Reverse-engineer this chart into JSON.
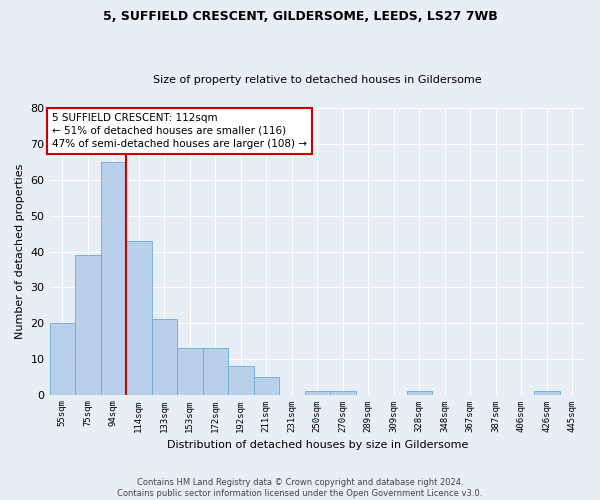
{
  "title": "5, SUFFIELD CRESCENT, GILDERSOME, LEEDS, LS27 7WB",
  "subtitle": "Size of property relative to detached houses in Gildersome",
  "xlabel": "Distribution of detached houses by size in Gildersome",
  "ylabel": "Number of detached properties",
  "bin_labels": [
    "55sqm",
    "75sqm",
    "94sqm",
    "114sqm",
    "133sqm",
    "153sqm",
    "172sqm",
    "192sqm",
    "211sqm",
    "231sqm",
    "250sqm",
    "270sqm",
    "289sqm",
    "309sqm",
    "328sqm",
    "348sqm",
    "367sqm",
    "387sqm",
    "406sqm",
    "426sqm",
    "445sqm"
  ],
  "bar_values": [
    20,
    39,
    65,
    43,
    21,
    13,
    13,
    8,
    5,
    0,
    1,
    1,
    0,
    0,
    1,
    0,
    0,
    0,
    0,
    1,
    0
  ],
  "bar_color": "#b8d0ea",
  "bar_edge_color": "#6aaad4",
  "background_color": "#e8eef5",
  "grid_color": "#ffffff",
  "vline_color": "#cc0000",
  "vline_x_index": 3,
  "ylim": [
    0,
    80
  ],
  "yticks": [
    0,
    10,
    20,
    30,
    40,
    50,
    60,
    70,
    80
  ],
  "annotation_title": "5 SUFFIELD CRESCENT: 112sqm",
  "annotation_line1": "← 51% of detached houses are smaller (116)",
  "annotation_line2": "47% of semi-detached houses are larger (108) →",
  "annotation_box_color": "#ffffff",
  "annotation_box_edge": "#cc0000",
  "footer_line1": "Contains HM Land Registry data © Crown copyright and database right 2024.",
  "footer_line2": "Contains public sector information licensed under the Open Government Licence v3.0.",
  "title_fontsize": 9,
  "subtitle_fontsize": 8,
  "ylabel_fontsize": 8,
  "xlabel_fontsize": 8,
  "ytick_fontsize": 8,
  "xtick_fontsize": 6.5,
  "footer_fontsize": 6,
  "annot_fontsize": 7.5
}
